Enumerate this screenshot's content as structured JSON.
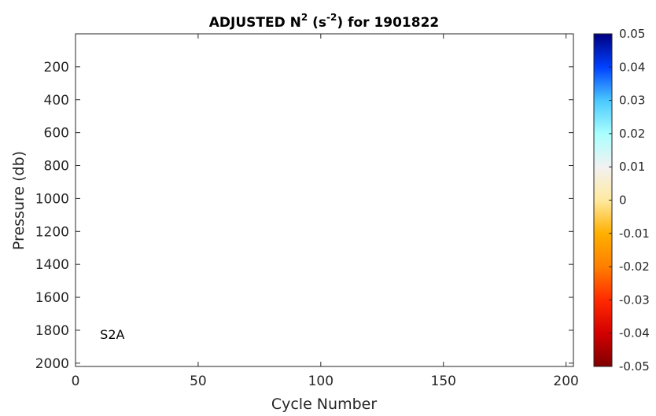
{
  "chart_data": {
    "type": "heatmap",
    "title_main": "ADJUSTED N",
    "title_sup1": "2",
    "title_mid": " (s",
    "title_sup2": "-2",
    "title_end": ") for 1901822",
    "xlabel": "Cycle Number",
    "ylabel": "Pressure (db)",
    "xlim": [
      0,
      203
    ],
    "ylim": [
      2020,
      0
    ],
    "y_reversed": true,
    "x_ticks": [
      "0",
      "50",
      "100",
      "150",
      "200"
    ],
    "y_ticks": [
      "200",
      "400",
      "600",
      "800",
      "1000",
      "1200",
      "1400",
      "1600",
      "1800",
      "2000"
    ],
    "annotation": {
      "text": "S2A",
      "x": 10,
      "y": 1825
    },
    "series": [],
    "colorbar": {
      "range": [
        -0.05,
        0.05
      ],
      "ticks": [
        "0.05",
        "0.04",
        "0.03",
        "0.02",
        "0.01",
        "0",
        "-0.01",
        "-0.02",
        "-0.03",
        "-0.04",
        "-0.05"
      ],
      "colors": [
        "#7f0000",
        "#d40000",
        "#ff2a00",
        "#ff7f00",
        "#ffb000",
        "#ffe9a0",
        "#f2f2f2",
        "#a9ffff",
        "#49c8ff",
        "#0040ff",
        "#00007f"
      ]
    }
  }
}
